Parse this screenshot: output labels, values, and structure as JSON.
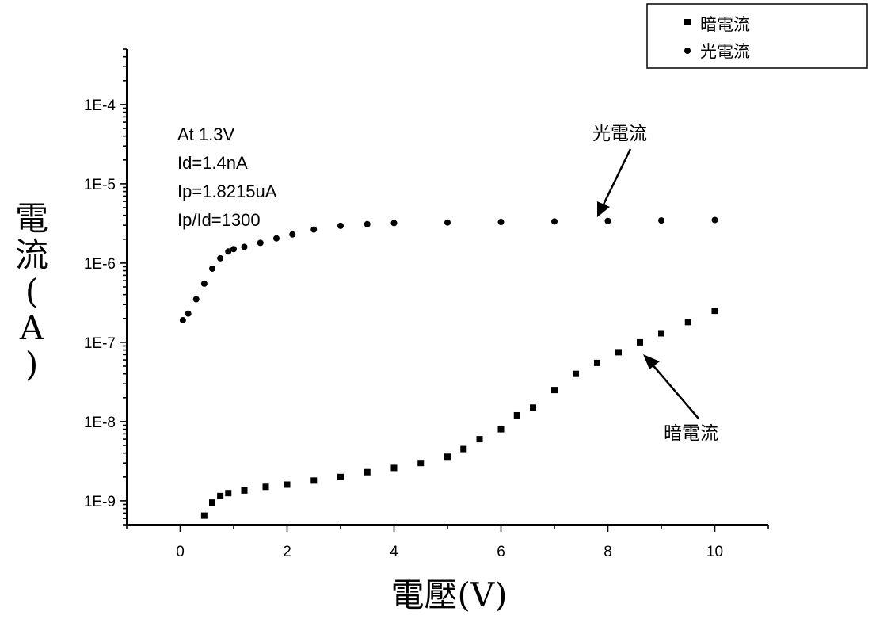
{
  "chart_data": {
    "type": "scatter",
    "title": "",
    "xlabel": "電壓(V)",
    "ylabel": "電流(A)",
    "xlim": [
      -1,
      11
    ],
    "ylim": [
      5e-10,
      0.0005
    ],
    "yscale": "log",
    "grid": false,
    "legend_position": "top-right",
    "x_ticks": [
      0,
      2,
      4,
      6,
      8,
      10
    ],
    "x_tick_labels": [
      "0",
      "2",
      "4",
      "6",
      "8",
      "10"
    ],
    "y_ticks": [
      1e-09,
      1e-08,
      1e-07,
      1e-06,
      1e-05,
      0.0001
    ],
    "y_tick_labels": [
      "1E-9",
      "1E-8",
      "1E-7",
      "1E-6",
      "1E-5",
      "1E-4"
    ],
    "series": [
      {
        "name": "暗電流",
        "marker": "square",
        "color": "#000000",
        "x": [
          0.45,
          0.6,
          0.75,
          0.9,
          1.2,
          1.6,
          2.0,
          2.5,
          3.0,
          3.5,
          4.0,
          4.5,
          5.0,
          5.3,
          5.6,
          6.0,
          6.3,
          6.6,
          7.0,
          7.4,
          7.8,
          8.2,
          8.6,
          9.0,
          9.5,
          10.0
        ],
        "y": [
          6.5e-10,
          9.5e-10,
          1.15e-09,
          1.25e-09,
          1.35e-09,
          1.5e-09,
          1.6e-09,
          1.8e-09,
          2e-09,
          2.3e-09,
          2.6e-09,
          3e-09,
          3.6e-09,
          4.5e-09,
          6e-09,
          8e-09,
          1.2e-08,
          1.5e-08,
          2.5e-08,
          4e-08,
          5.5e-08,
          7.5e-08,
          1e-07,
          1.3e-07,
          1.8e-07,
          2.5e-07
        ]
      },
      {
        "name": "光電流",
        "marker": "circle",
        "color": "#000000",
        "x": [
          0.05,
          0.15,
          0.3,
          0.45,
          0.6,
          0.75,
          0.9,
          1.0,
          1.2,
          1.5,
          1.8,
          2.1,
          2.5,
          3.0,
          3.5,
          4.0,
          5.0,
          6.0,
          7.0,
          8.0,
          9.0,
          10.0
        ],
        "y": [
          1.9e-07,
          2.3e-07,
          3.5e-07,
          5.5e-07,
          8.5e-07,
          1.15e-06,
          1.4e-06,
          1.5e-06,
          1.6e-06,
          1.8e-06,
          2.05e-06,
          2.3e-06,
          2.65e-06,
          2.95e-06,
          3.1e-06,
          3.2e-06,
          3.25e-06,
          3.3e-06,
          3.35e-06,
          3.4e-06,
          3.45e-06,
          3.5e-06
        ]
      }
    ],
    "annotations": {
      "info_lines": [
        "At 1.3V",
        "Id=1.4nA",
        "Ip=1.8215uA",
        "Ip/Id=1300"
      ],
      "photo_label": "光電流",
      "dark_label": "暗電流"
    }
  }
}
